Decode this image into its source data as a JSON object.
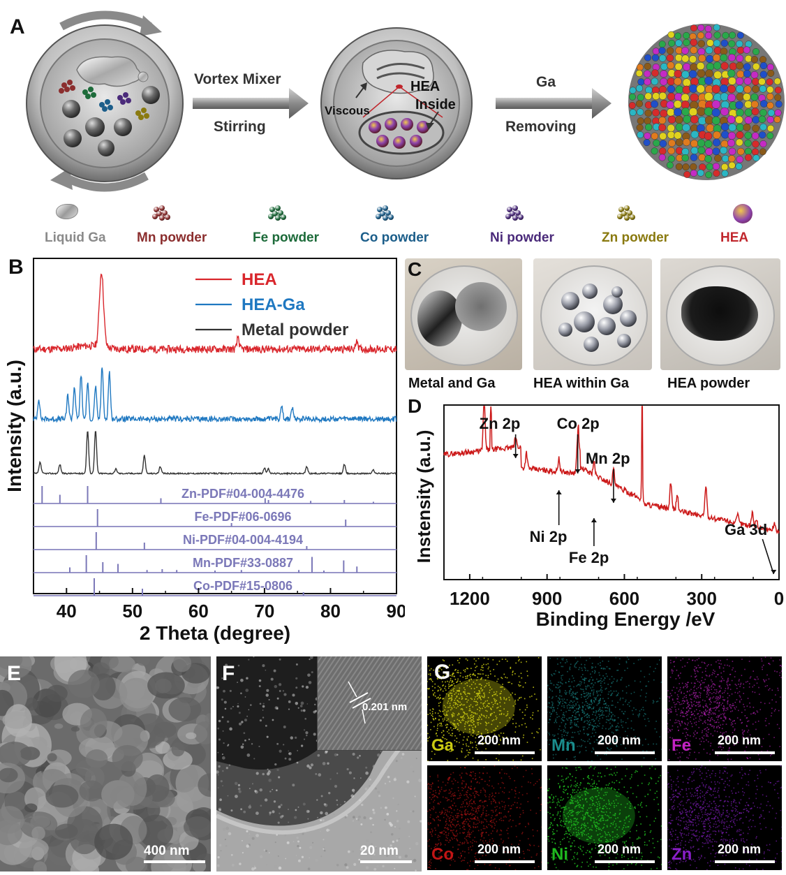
{
  "panels": {
    "A": "A",
    "B": "B",
    "C": "C",
    "D": "D",
    "E": "E",
    "F": "F",
    "G": "G"
  },
  "schematic": {
    "step1_top": "Vortex Mixer",
    "step1_bottom": "Stirring",
    "viscous": "Viscous",
    "hea_inside_1": "HEA",
    "hea_inside_2": "Inside",
    "step2_top": "Ga",
    "step2_bottom": "Removing"
  },
  "legend": [
    {
      "label": "Liquid Ga",
      "color": "#8a8a8a",
      "icon": "liquid-ga-drop"
    },
    {
      "label": "Mn powder",
      "color": "#8b2e2e",
      "icon": "mn-particles"
    },
    {
      "label": "Fe powder",
      "color": "#1d6b3a",
      "icon": "fe-particles"
    },
    {
      "label": "Co powder",
      "color": "#1c5e8a",
      "icon": "co-particles"
    },
    {
      "label": "Ni powder",
      "color": "#4a2a7a",
      "icon": "ni-particles"
    },
    {
      "label": "Zn powder",
      "color": "#8a7a10",
      "icon": "zn-particles"
    },
    {
      "label": "HEA",
      "color": "#c0262c",
      "icon": "hea-sphere"
    }
  ],
  "photos": {
    "c1": "Metal and Ga",
    "c2": "HEA within Ga",
    "c3": "HEA powder"
  },
  "chart_data": [
    {
      "type": "line",
      "panel": "B",
      "xlabel": "2 Theta (degree)",
      "ylabel": "Intensity (a.u.)",
      "xlim": [
        35,
        90
      ],
      "xticks": [
        40,
        50,
        60,
        70,
        80,
        90
      ],
      "series": [
        {
          "name": "HEA",
          "color": "#d9262c",
          "baseline": 0.12,
          "peaks": [
            [
              45.3,
              0.9
            ],
            [
              66.0,
              0.15
            ],
            [
              84.0,
              0.12
            ]
          ]
        },
        {
          "name": "HEA-Ga",
          "color": "#1f78c1",
          "baseline": 0.0,
          "peaks": [
            [
              35.8,
              0.35
            ],
            [
              40.2,
              0.4
            ],
            [
              41.2,
              0.55
            ],
            [
              42.2,
              0.75
            ],
            [
              43.2,
              0.6
            ],
            [
              44.4,
              0.55
            ],
            [
              45.4,
              0.9
            ],
            [
              46.5,
              0.8
            ],
            [
              72.6,
              0.25
            ],
            [
              74.2,
              0.18
            ]
          ]
        },
        {
          "name": "Metal powder",
          "color": "#333333",
          "baseline": 0.0,
          "peaks": [
            [
              36.0,
              0.25
            ],
            [
              39.0,
              0.2
            ],
            [
              43.2,
              0.95
            ],
            [
              44.4,
              0.95
            ],
            [
              47.5,
              0.1
            ],
            [
              51.8,
              0.4
            ],
            [
              54.2,
              0.15
            ],
            [
              70.0,
              0.12
            ],
            [
              70.6,
              0.1
            ],
            [
              76.4,
              0.15
            ],
            [
              82.1,
              0.2
            ],
            [
              86.5,
              0.08
            ]
          ]
        }
      ],
      "references": [
        {
          "name": "Zn-PDF#04-004-4476",
          "lines": [
            [
              36.3,
              1.0
            ],
            [
              39.0,
              0.5
            ],
            [
              43.2,
              1.0
            ],
            [
              54.3,
              0.3
            ],
            [
              70.1,
              0.3
            ],
            [
              70.6,
              0.2
            ],
            [
              77.0,
              0.15
            ],
            [
              82.1,
              0.2
            ],
            [
              86.5,
              0.1
            ]
          ]
        },
        {
          "name": "Fe-PDF#06-0696",
          "lines": [
            [
              44.7,
              1.0
            ],
            [
              65.0,
              0.2
            ],
            [
              82.3,
              0.4
            ]
          ]
        },
        {
          "name": "Ni-PDF#04-004-4194",
          "lines": [
            [
              44.5,
              1.0
            ],
            [
              51.8,
              0.4
            ],
            [
              76.4,
              0.2
            ]
          ]
        },
        {
          "name": "Mn-PDF#33-0887",
          "lines": [
            [
              40.5,
              0.3
            ],
            [
              43.0,
              1.0
            ],
            [
              45.5,
              0.6
            ],
            [
              47.8,
              0.5
            ],
            [
              52.2,
              0.15
            ],
            [
              54.5,
              0.2
            ],
            [
              56.7,
              0.15
            ],
            [
              62.5,
              0.12
            ],
            [
              66.5,
              0.15
            ],
            [
              75.2,
              0.15
            ],
            [
              77.2,
              0.9
            ],
            [
              79.0,
              0.12
            ],
            [
              82.0,
              0.7
            ],
            [
              84.0,
              0.35
            ]
          ]
        },
        {
          "name": "Co-PDF#15-0806",
          "lines": [
            [
              44.2,
              1.0
            ],
            [
              51.5,
              0.4
            ],
            [
              75.9,
              0.2
            ]
          ]
        }
      ]
    },
    {
      "type": "line",
      "panel": "D",
      "xlabel": "Binding Energy /eV",
      "ylabel": "Instensity (a.u.)",
      "xlim": [
        1300,
        0
      ],
      "xticks": [
        1200,
        900,
        600,
        300,
        0
      ],
      "series": [
        {
          "name": "",
          "color": "#cc1a1a"
        }
      ],
      "annotations": [
        "Zn 2p",
        "Co 2p",
        "Mn 2p",
        "Ni 2p",
        "Fe 2p",
        "Ga 3d"
      ]
    }
  ],
  "scalebars": {
    "E": "400 nm",
    "F": "20 nm",
    "F_inset": "0.201 nm",
    "G": "200 nm"
  },
  "eds_maps": [
    {
      "element": "Ga",
      "color": "#c9c912"
    },
    {
      "element": "Mn",
      "color": "#1a8c8c"
    },
    {
      "element": "Fe",
      "color": "#c223c2"
    },
    {
      "element": "Co",
      "color": "#c21515"
    },
    {
      "element": "Ni",
      "color": "#1fb81f"
    },
    {
      "element": "Zn",
      "color": "#8a1fc9"
    }
  ]
}
